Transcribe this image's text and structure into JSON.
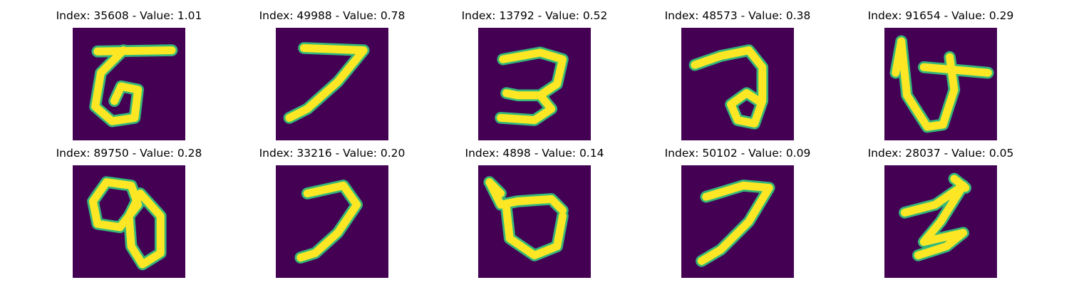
{
  "figure": {
    "background_color": "#440154",
    "stroke_core_color": "#fde725",
    "stroke_edge_color": "#35b779",
    "panels": [
      {
        "title": "Index: 35608 - Value: 1.01",
        "index": 35608,
        "value": 1.01,
        "glyph": "character resembling 'ਨ' / Bengali-like handwritten glyph",
        "strokes": [
          [
            [
              0.22,
              0.21
            ],
            [
              0.88,
              0.2
            ]
          ],
          [
            [
              0.45,
              0.2
            ],
            [
              0.25,
              0.4
            ],
            [
              0.2,
              0.7
            ],
            [
              0.35,
              0.83
            ],
            [
              0.55,
              0.8
            ],
            [
              0.58,
              0.55
            ],
            [
              0.43,
              0.52
            ],
            [
              0.37,
              0.65
            ]
          ]
        ]
      },
      {
        "title": "Index: 49988 - Value: 0.78",
        "index": 49988,
        "value": 0.78,
        "glyph": "handwritten glyph shaped like '7'",
        "strokes": [
          [
            [
              0.25,
              0.18
            ],
            [
              0.78,
              0.2
            ],
            [
              0.55,
              0.48
            ],
            [
              0.28,
              0.72
            ],
            [
              0.12,
              0.8
            ]
          ]
        ]
      },
      {
        "title": "Index: 13792 - Value: 0.52",
        "index": 13792,
        "value": 0.52,
        "glyph": "handwritten glyph shaped like a reversed 'S'",
        "strokes": [
          [
            [
              0.22,
              0.28
            ],
            [
              0.55,
              0.22
            ],
            [
              0.75,
              0.28
            ],
            [
              0.7,
              0.5
            ],
            [
              0.55,
              0.6
            ],
            [
              0.35,
              0.6
            ],
            [
              0.25,
              0.58
            ]
          ],
          [
            [
              0.55,
              0.6
            ],
            [
              0.65,
              0.72
            ],
            [
              0.5,
              0.82
            ],
            [
              0.2,
              0.8
            ]
          ]
        ]
      },
      {
        "title": "Index: 48573 - Value: 0.38",
        "index": 48573,
        "value": 0.38,
        "glyph": "handwritten looped glyph",
        "strokes": [
          [
            [
              0.12,
              0.33
            ],
            [
              0.35,
              0.25
            ],
            [
              0.6,
              0.2
            ],
            [
              0.72,
              0.35
            ],
            [
              0.72,
              0.65
            ],
            [
              0.65,
              0.85
            ],
            [
              0.5,
              0.82
            ],
            [
              0.44,
              0.68
            ],
            [
              0.58,
              0.58
            ],
            [
              0.7,
              0.66
            ]
          ]
        ]
      },
      {
        "title": "Index: 91654 - Value: 0.29",
        "index": 91654,
        "value": 0.29,
        "glyph": "handwritten glyph with crossbar",
        "strokes": [
          [
            [
              0.15,
              0.12
            ],
            [
              0.2,
              0.6
            ],
            [
              0.38,
              0.88
            ],
            [
              0.52,
              0.86
            ],
            [
              0.62,
              0.55
            ],
            [
              0.58,
              0.26
            ]
          ],
          [
            [
              0.35,
              0.35
            ],
            [
              0.92,
              0.4
            ]
          ],
          [
            [
              0.15,
              0.12
            ],
            [
              0.1,
              0.4
            ]
          ]
        ]
      },
      {
        "title": "Index: 89750 - Value: 0.28",
        "index": 89750,
        "value": 0.28,
        "glyph": "handwritten double-loop glyph",
        "strokes": [
          [
            [
              0.3,
              0.15
            ],
            [
              0.52,
              0.18
            ],
            [
              0.58,
              0.35
            ],
            [
              0.42,
              0.55
            ],
            [
              0.22,
              0.52
            ],
            [
              0.18,
              0.32
            ],
            [
              0.3,
              0.15
            ]
          ],
          [
            [
              0.6,
              0.25
            ],
            [
              0.78,
              0.45
            ],
            [
              0.78,
              0.78
            ],
            [
              0.62,
              0.88
            ],
            [
              0.52,
              0.72
            ],
            [
              0.5,
              0.45
            ],
            [
              0.6,
              0.25
            ]
          ]
        ]
      },
      {
        "title": "Index: 33216 - Value: 0.20",
        "index": 33216,
        "value": 0.2,
        "glyph": "handwritten curved stroke",
        "strokes": [
          [
            [
              0.28,
              0.25
            ],
            [
              0.6,
              0.18
            ],
            [
              0.72,
              0.35
            ],
            [
              0.55,
              0.6
            ],
            [
              0.35,
              0.78
            ],
            [
              0.22,
              0.82
            ]
          ]
        ]
      },
      {
        "title": "Index: 4898 - Value: 0.14",
        "index": 4898,
        "value": 0.14,
        "glyph": "handwritten U-shaped glyph with top stroke",
        "strokes": [
          [
            [
              0.1,
              0.15
            ],
            [
              0.2,
              0.35
            ],
            [
              0.35,
              0.32
            ],
            [
              0.65,
              0.3
            ],
            [
              0.75,
              0.4
            ]
          ],
          [
            [
              0.25,
              0.38
            ],
            [
              0.28,
              0.65
            ],
            [
              0.5,
              0.8
            ],
            [
              0.7,
              0.72
            ],
            [
              0.75,
              0.45
            ]
          ],
          [
            [
              0.1,
              0.15
            ],
            [
              0.2,
              0.25
            ]
          ]
        ]
      },
      {
        "title": "Index: 50102 - Value: 0.09",
        "index": 50102,
        "value": 0.09,
        "glyph": "handwritten glyph shaped like '7'",
        "strokes": [
          [
            [
              0.22,
              0.28
            ],
            [
              0.55,
              0.18
            ],
            [
              0.78,
              0.2
            ],
            [
              0.6,
              0.5
            ],
            [
              0.35,
              0.75
            ],
            [
              0.18,
              0.85
            ]
          ]
        ]
      },
      {
        "title": "Index: 28037 - Value: 0.05",
        "index": 28037,
        "value": 0.05,
        "glyph": "handwritten zig-zag glyph",
        "strokes": [
          [
            [
              0.18,
              0.42
            ],
            [
              0.45,
              0.35
            ],
            [
              0.7,
              0.18
            ],
            [
              0.5,
              0.5
            ],
            [
              0.35,
              0.68
            ],
            [
              0.7,
              0.6
            ],
            [
              0.55,
              0.72
            ],
            [
              0.3,
              0.8
            ]
          ],
          [
            [
              0.62,
              0.12
            ],
            [
              0.72,
              0.2
            ]
          ]
        ]
      }
    ]
  }
}
